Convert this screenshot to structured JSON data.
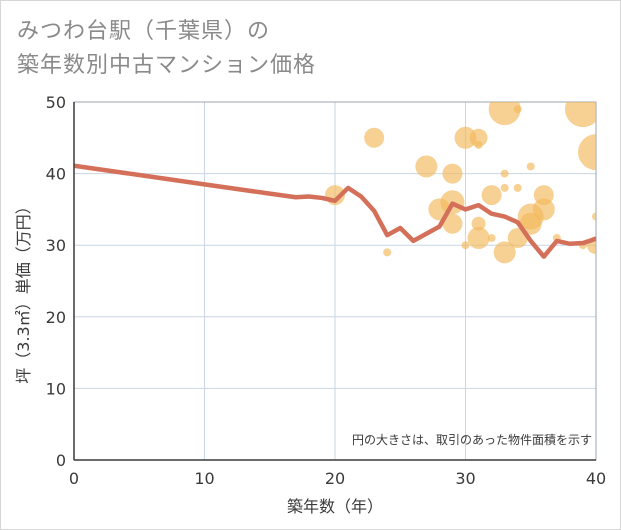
{
  "title_line1": "みつわ台駅（千葉県）の",
  "title_line2": "築年数別中古マンション価格",
  "colors": {
    "bubble": "#f3b95a",
    "line": "#d4705a",
    "grid": "#c9d6e3",
    "axis": "#9aa5b1"
  },
  "chart_data": {
    "type": "scatter",
    "title": "みつわ台駅（千葉県）の 築年数別中古マンション価格",
    "xlabel": "築年数（年）",
    "ylabel": "坪（3.3㎡）単価（万円）",
    "xlim": [
      0,
      40
    ],
    "ylim": [
      0,
      50
    ],
    "xticks": [
      0,
      10,
      20,
      30,
      40
    ],
    "yticks": [
      0,
      10,
      20,
      30,
      40,
      50
    ],
    "grid": true,
    "note": "円の大きさは、取引のあった物件面積を示す",
    "bubbles": [
      {
        "x": 20,
        "y": 37,
        "r": 10
      },
      {
        "x": 23,
        "y": 45,
        "r": 10
      },
      {
        "x": 24,
        "y": 29,
        "r": 4
      },
      {
        "x": 27,
        "y": 41,
        "r": 11
      },
      {
        "x": 28,
        "y": 35,
        "r": 11
      },
      {
        "x": 29,
        "y": 40,
        "r": 10
      },
      {
        "x": 29,
        "y": 36,
        "r": 12
      },
      {
        "x": 29,
        "y": 33,
        "r": 10
      },
      {
        "x": 30,
        "y": 45,
        "r": 11
      },
      {
        "x": 30,
        "y": 30,
        "r": 4
      },
      {
        "x": 31,
        "y": 45,
        "r": 9
      },
      {
        "x": 31,
        "y": 44,
        "r": 4
      },
      {
        "x": 31,
        "y": 33,
        "r": 7
      },
      {
        "x": 31,
        "y": 31,
        "r": 11
      },
      {
        "x": 32,
        "y": 37,
        "r": 10
      },
      {
        "x": 32,
        "y": 31,
        "r": 4
      },
      {
        "x": 33,
        "y": 49,
        "r": 16
      },
      {
        "x": 33,
        "y": 40,
        "r": 4
      },
      {
        "x": 33,
        "y": 38,
        "r": 4
      },
      {
        "x": 33,
        "y": 29,
        "r": 11
      },
      {
        "x": 34,
        "y": 49,
        "r": 4
      },
      {
        "x": 34,
        "y": 38,
        "r": 4
      },
      {
        "x": 34,
        "y": 31,
        "r": 10
      },
      {
        "x": 35,
        "y": 41,
        "r": 4
      },
      {
        "x": 35,
        "y": 34,
        "r": 13
      },
      {
        "x": 35,
        "y": 33,
        "r": 11
      },
      {
        "x": 36,
        "y": 37,
        "r": 10
      },
      {
        "x": 36,
        "y": 35,
        "r": 11
      },
      {
        "x": 37,
        "y": 31,
        "r": 4
      },
      {
        "x": 39,
        "y": 49,
        "r": 18
      },
      {
        "x": 39,
        "y": 30,
        "r": 4
      },
      {
        "x": 40,
        "y": 43,
        "r": 18
      },
      {
        "x": 40,
        "y": 34,
        "r": 4
      },
      {
        "x": 40,
        "y": 30,
        "r": 9
      }
    ],
    "series": [
      {
        "x": [
          0,
          5,
          10,
          15,
          17,
          18,
          19,
          20,
          21,
          22,
          23,
          24,
          25,
          26,
          27,
          28,
          29,
          30,
          31,
          32,
          33,
          34,
          35,
          36,
          37,
          38,
          39,
          40
        ],
        "y": [
          41.1,
          39.8,
          38.5,
          37.2,
          36.7,
          36.8,
          36.6,
          36.2,
          38.0,
          36.8,
          34.8,
          31.4,
          32.4,
          30.6,
          31.6,
          32.6,
          35.8,
          35.0,
          35.6,
          34.4,
          34.0,
          33.2,
          30.6,
          28.4,
          30.6,
          30.2,
          30.3,
          30.9
        ]
      }
    ]
  }
}
